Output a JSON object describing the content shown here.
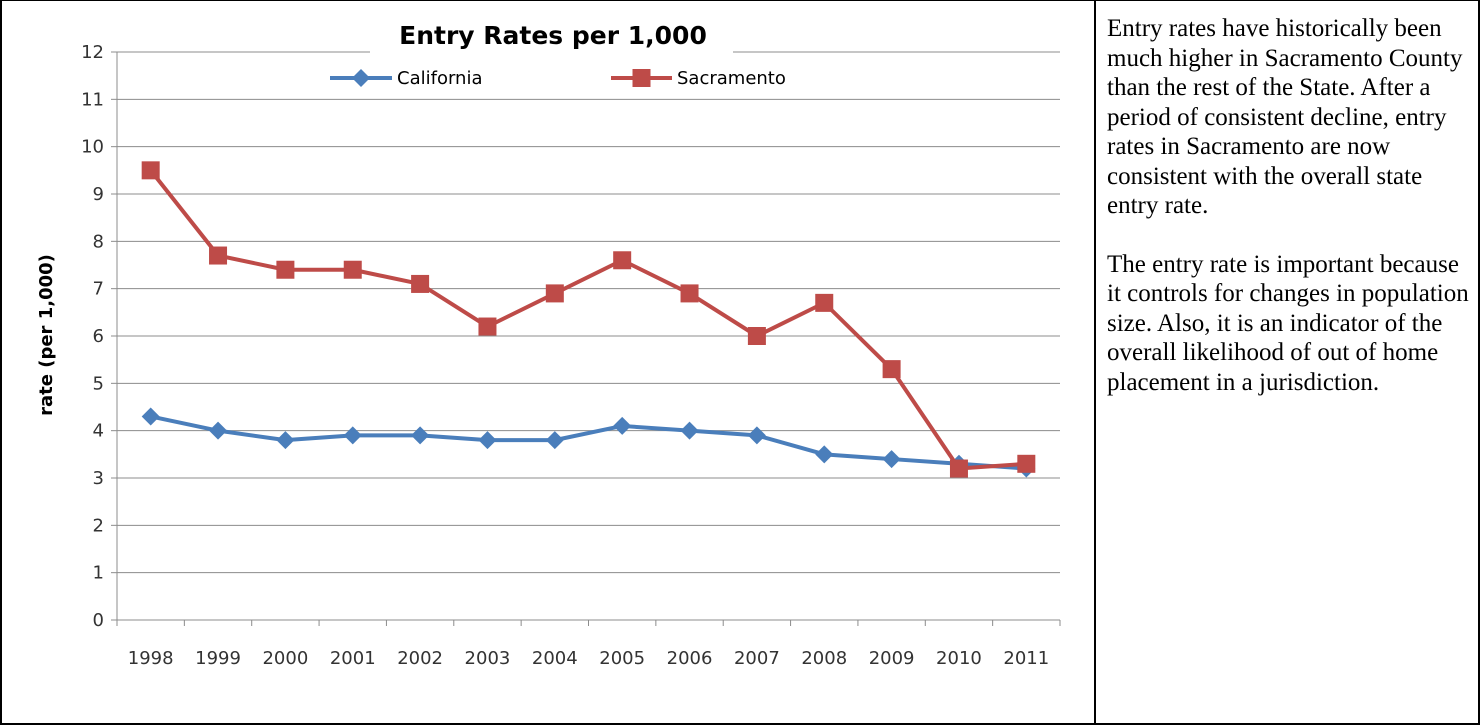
{
  "chart_data": {
    "type": "line",
    "title": "Entry Rates per 1,000",
    "xlabel": "",
    "ylabel": "rate (per 1,000)",
    "ylim": [
      0,
      12
    ],
    "yticks": [
      "0",
      "1",
      "2",
      "3",
      "4",
      "5",
      "6",
      "7",
      "8",
      "9",
      "10",
      "11",
      "12"
    ],
    "grid": "horizontal",
    "legend": "top",
    "categories": [
      "1998",
      "1999",
      "2000",
      "2001",
      "2002",
      "2003",
      "2004",
      "2005",
      "2006",
      "2007",
      "2008",
      "2009",
      "2010",
      "2011"
    ],
    "series": [
      {
        "name": "California",
        "color": "#4a7ebb",
        "marker": "diamond",
        "values": [
          4.3,
          4.0,
          3.8,
          3.9,
          3.9,
          3.8,
          3.8,
          4.1,
          4.0,
          3.9,
          3.5,
          3.4,
          3.3,
          3.2
        ]
      },
      {
        "name": "Sacramento",
        "color": "#be4b48",
        "marker": "square",
        "values": [
          9.5,
          7.7,
          7.4,
          7.4,
          7.1,
          6.2,
          6.9,
          7.6,
          6.9,
          6.0,
          6.7,
          5.3,
          3.2,
          3.3
        ]
      }
    ]
  },
  "note": {
    "paragraph1": "Entry rates have historically been much higher in Sacramento County than the rest of the State.  After a period of consistent decline, entry rates in Sacramento are now consistent with the overall state entry rate.",
    "paragraph2": "The entry rate is important because it controls for changes in population size. Also, it is an indicator of the overall likelihood of out of home placement in a jurisdiction."
  }
}
